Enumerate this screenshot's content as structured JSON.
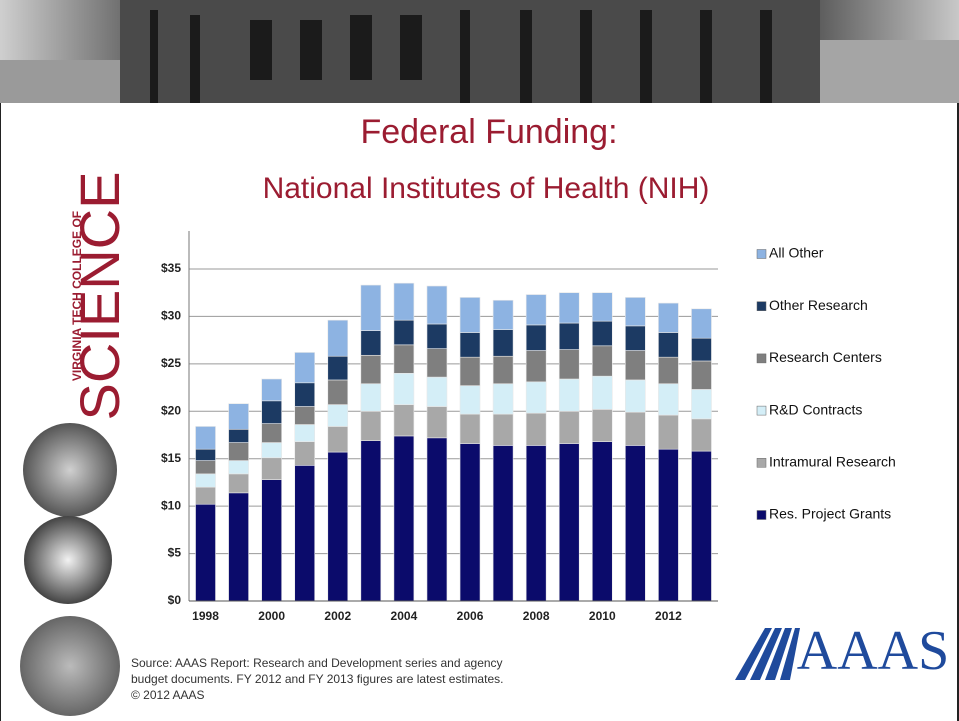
{
  "slide": {
    "logo_top": "VIRGINIA TECH COLLEGE OF",
    "logo_main": "SCIENCE",
    "source": [
      "Source: AAAS Report: Research and Development series and agency",
      "budget documents. FY 2012 and FY 2013 figures are latest estimates.",
      "© 2012 AAAS"
    ],
    "aaas_logo": "AAAS"
  },
  "chart_data": {
    "type": "stacked_bar",
    "title": "Federal Funding:",
    "subtitle": "National Institutes of Health (NIH)",
    "categories": [
      "1998",
      null,
      "2000",
      null,
      "2002",
      null,
      "2004",
      null,
      "2006",
      null,
      "2008",
      null,
      "2010",
      null,
      "2012",
      null
    ],
    "series": [
      {
        "name": "Res. Project Grants",
        "color": "#0b0b6b",
        "values": [
          10.2,
          11.4,
          12.8,
          14.3,
          15.7,
          16.9,
          17.4,
          17.2,
          16.6,
          16.4,
          16.4,
          16.6,
          16.8,
          16.4,
          16.0,
          15.8
        ]
      },
      {
        "name": "Intramural Research",
        "color": "#a8a8a8",
        "values": [
          1.8,
          2.0,
          2.3,
          2.5,
          2.7,
          3.1,
          3.3,
          3.3,
          3.1,
          3.3,
          3.4,
          3.4,
          3.4,
          3.5,
          3.6,
          3.4
        ]
      },
      {
        "name": "R&D Contracts",
        "color": "#d4eef7",
        "values": [
          1.4,
          1.4,
          1.6,
          1.8,
          2.3,
          2.9,
          3.3,
          3.1,
          3.0,
          3.2,
          3.3,
          3.4,
          3.5,
          3.4,
          3.3,
          3.1
        ]
      },
      {
        "name": "Research Centers",
        "color": "#7f7f7f",
        "values": [
          1.4,
          1.9,
          2.0,
          1.9,
          2.6,
          3.0,
          3.0,
          3.0,
          3.0,
          2.9,
          3.3,
          3.1,
          3.2,
          3.1,
          2.8,
          3.0
        ]
      },
      {
        "name": "Other Research",
        "color": "#1c3a63",
        "values": [
          1.2,
          1.4,
          2.4,
          2.5,
          2.5,
          2.6,
          2.6,
          2.6,
          2.6,
          2.8,
          2.7,
          2.8,
          2.6,
          2.6,
          2.6,
          2.4
        ]
      },
      {
        "name": "All Other",
        "color": "#8db3e2",
        "values": [
          2.4,
          2.7,
          2.3,
          3.2,
          3.8,
          4.8,
          3.9,
          4.0,
          3.7,
          3.1,
          3.2,
          3.2,
          3.0,
          3.0,
          3.1,
          3.1
        ]
      }
    ],
    "ylim": [
      0,
      39
    ],
    "yticks": [
      {
        "value": 0,
        "label": "$0"
      },
      {
        "value": 5,
        "label": "$5"
      },
      {
        "value": 10,
        "label": "$10"
      },
      {
        "value": 15,
        "label": "$15"
      },
      {
        "value": 20,
        "label": "$20"
      },
      {
        "value": 25,
        "label": "$25"
      },
      {
        "value": 30,
        "label": "$30"
      },
      {
        "value": 35,
        "label": "$35"
      }
    ],
    "grid": true,
    "legend": "right"
  }
}
